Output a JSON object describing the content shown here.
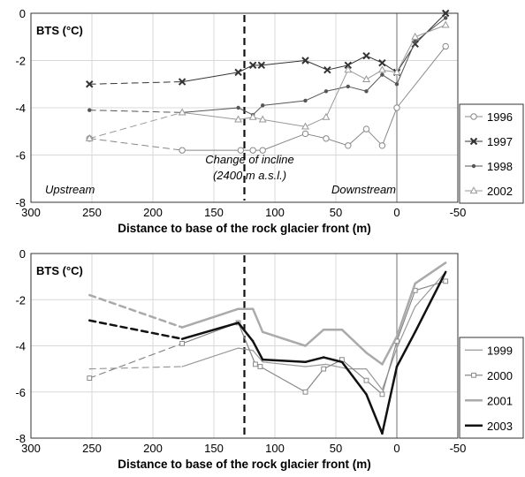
{
  "chart_data": [
    {
      "type": "line",
      "ylabel": "BTS (°C)",
      "xlabel": "Distance to base of the rock glacier front (m)",
      "xlim": [
        300,
        -50
      ],
      "ylim": [
        -8,
        0
      ],
      "x_ticks": [
        "300",
        "250",
        "200",
        "150",
        "100",
        "50",
        "0",
        "-50"
      ],
      "y_ticks": [
        "0",
        "-2",
        "-4",
        "-6",
        "-8"
      ],
      "grid": true,
      "legend": "right",
      "annotations": {
        "change_line1": "Change of incline",
        "change_line2": "(2400 m a.s.l.)",
        "upstream": "Upstream",
        "downstream": "Downstream"
      },
      "incline_x": 125,
      "series": [
        {
          "name": "1996",
          "color": "#888888",
          "marker": "circle",
          "x": [
            252,
            176,
            128,
            118,
            110,
            75,
            58,
            40,
            25,
            12,
            0,
            -40
          ],
          "y": [
            -5.3,
            -5.8,
            -5.8,
            -5.8,
            -5.8,
            -5.1,
            -5.3,
            -5.6,
            -4.9,
            -5.6,
            -4.0,
            -1.4
          ],
          "dashed_until": 1
        },
        {
          "name": "1997",
          "color": "#333333",
          "marker": "x",
          "x": [
            252,
            176,
            130,
            118,
            111,
            75,
            57,
            40,
            25,
            12,
            0,
            -15,
            -40
          ],
          "y": [
            -3.0,
            -2.9,
            -2.5,
            -2.2,
            -2.2,
            -2.0,
            -2.4,
            -2.2,
            -1.8,
            -2.1,
            -2.5,
            -1.3,
            0.0
          ],
          "dashed_until": 1
        },
        {
          "name": "1998",
          "color": "#555555",
          "marker": "dot",
          "x": [
            252,
            176,
            130,
            118,
            110,
            75,
            58,
            40,
            25,
            12,
            0,
            -15,
            -40
          ],
          "y": [
            -4.1,
            -4.2,
            -4.0,
            -4.3,
            -3.9,
            -3.7,
            -3.3,
            -3.1,
            -3.3,
            -2.6,
            -3.0,
            -1.2,
            -0.2
          ],
          "dashed_until": 1
        },
        {
          "name": "2002",
          "color": "#999999",
          "marker": "triangle",
          "x": [
            252,
            176,
            130,
            118,
            110,
            75,
            58,
            40,
            25,
            12,
            0,
            -15,
            -40
          ],
          "y": [
            -5.3,
            -4.2,
            -4.5,
            -4.4,
            -4.5,
            -4.8,
            -4.4,
            -2.4,
            -2.8,
            -2.4,
            -2.5,
            -1.0,
            -0.5
          ],
          "dashed_until": 1
        }
      ]
    },
    {
      "type": "line",
      "ylabel": "BTS (°C)",
      "xlabel": "Distance to base of the rock glacier front (m)",
      "xlim": [
        300,
        -50
      ],
      "ylim": [
        -8,
        0
      ],
      "x_ticks": [
        "300",
        "250",
        "200",
        "150",
        "100",
        "50",
        "0",
        "-50"
      ],
      "y_ticks": [
        "0",
        "-2",
        "-4",
        "-6",
        "-8"
      ],
      "grid": true,
      "legend": "right",
      "incline_x": 125,
      "series": [
        {
          "name": "1999",
          "color": "#999999",
          "width": 1.2,
          "marker": "none",
          "x": [
            252,
            176,
            130,
            118,
            110,
            75,
            58,
            40,
            25,
            12,
            0,
            -15,
            -40
          ],
          "y": [
            -5.0,
            -4.9,
            -4.1,
            -4.2,
            -4.7,
            -4.9,
            -4.8,
            -5.0,
            -5.0,
            -5.9,
            -4.1,
            -2.3,
            -0.8
          ],
          "dashed_until": 1
        },
        {
          "name": "2000",
          "color": "#888888",
          "width": 1.2,
          "marker": "square",
          "x": [
            252,
            176,
            130,
            116,
            112,
            75,
            60,
            45,
            25,
            12,
            0,
            -15,
            -40
          ],
          "y": [
            -5.4,
            -3.9,
            -3.0,
            -4.8,
            -4.9,
            -6.0,
            -5.0,
            -4.6,
            -5.5,
            -6.1,
            -3.8,
            -1.6,
            -1.2
          ],
          "dashed_until": 1
        },
        {
          "name": "2001",
          "color": "#aaaaaa",
          "width": 2.5,
          "marker": "none",
          "x": [
            252,
            176,
            130,
            118,
            110,
            75,
            60,
            45,
            25,
            12,
            0,
            -15,
            -40
          ],
          "y": [
            -1.8,
            -3.2,
            -2.4,
            -2.4,
            -3.4,
            -4.0,
            -3.3,
            -3.3,
            -4.3,
            -4.8,
            -3.6,
            -1.3,
            -0.4
          ],
          "dashed_until": 1
        },
        {
          "name": "2003",
          "color": "#111111",
          "width": 2.5,
          "marker": "none",
          "x": [
            252,
            176,
            130,
            118,
            110,
            75,
            60,
            45,
            25,
            12,
            0,
            -15,
            -40
          ],
          "y": [
            -2.9,
            -3.7,
            -3.0,
            -3.8,
            -4.6,
            -4.7,
            -4.5,
            -4.7,
            -6.1,
            -7.8,
            -4.9,
            -3.4,
            -0.8
          ],
          "dashed_until": 1
        }
      ]
    }
  ]
}
